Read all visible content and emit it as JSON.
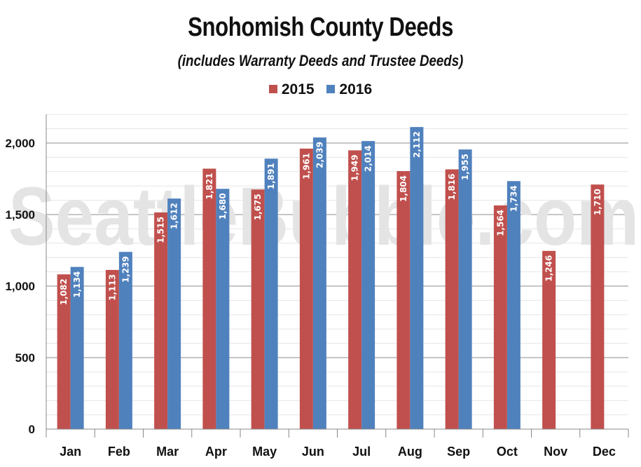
{
  "chart_data": {
    "type": "bar",
    "title": "Snohomish County Deeds",
    "subtitle": "(includes Warranty Deeds and Trustee Deeds)",
    "categories": [
      "Jan",
      "Feb",
      "Mar",
      "Apr",
      "May",
      "Jun",
      "Jul",
      "Aug",
      "Sep",
      "Oct",
      "Nov",
      "Dec"
    ],
    "series": [
      {
        "name": "2015",
        "color": "#c0504d",
        "values": [
          1082,
          1113,
          1515,
          1821,
          1675,
          1961,
          1949,
          1804,
          1816,
          1564,
          1246,
          1710
        ]
      },
      {
        "name": "2016",
        "color": "#4f81bd",
        "values": [
          1134,
          1239,
          1612,
          1680,
          1891,
          2039,
          2014,
          2112,
          1955,
          1734,
          null,
          null
        ]
      }
    ],
    "value_labels": {
      "2015": [
        "1,082",
        "1,113",
        "1,515",
        "1,821",
        "1,675",
        "1,961",
        "1,949",
        "1,804",
        "1,816",
        "1,564",
        "1,246",
        "1,710"
      ],
      "2016": [
        "1,134",
        "1,239",
        "1,612",
        "1,680",
        "1,891",
        "2,039",
        "2,014",
        "2,112",
        "1,955",
        "1,734",
        null,
        null
      ]
    },
    "yticks": [
      0,
      500,
      1000,
      1500,
      2000
    ],
    "ytick_labels": [
      "0",
      "500",
      "1,000",
      "1,500",
      "2,000"
    ],
    "ylim": [
      0,
      2250
    ],
    "grid": true,
    "legend_position": "top-center",
    "watermark": "SeattleBubble.com"
  }
}
